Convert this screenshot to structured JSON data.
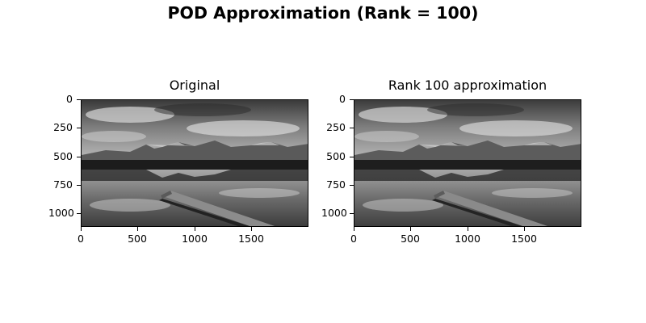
{
  "figure_title": "POD Approximation (Rank = 100)",
  "panels": [
    {
      "title": "Original"
    },
    {
      "title": "Rank 100 approximation"
    }
  ],
  "image_extent": {
    "width": 2000,
    "height": 1120
  },
  "y_ticks": [
    "0",
    "250",
    "500",
    "750",
    "1000"
  ],
  "x_ticks": [
    "0",
    "500",
    "1000",
    "1500"
  ],
  "image_description_icon": "grayscale-lake-pier-mountains-photo"
}
